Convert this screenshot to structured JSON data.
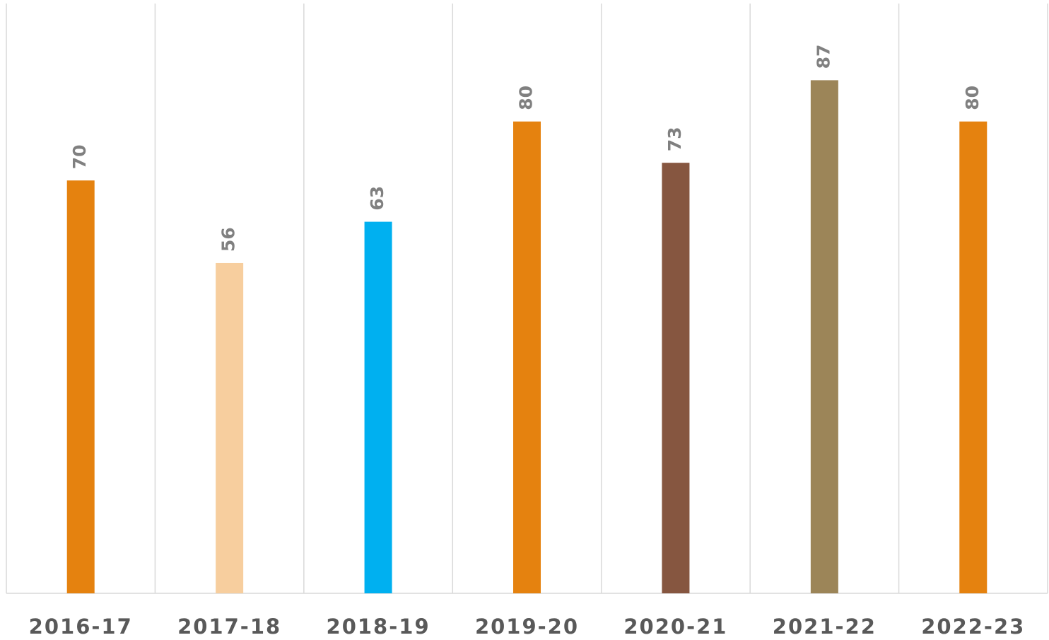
{
  "chart_data": {
    "type": "bar",
    "categories": [
      "2016-17",
      "2017-18",
      "2018-19",
      "2019-20",
      "2020-21",
      "2021-22",
      "2022-23"
    ],
    "values": [
      70,
      56,
      63,
      80,
      73,
      87,
      80
    ],
    "colors": [
      "#e5820f",
      "#f7ce9e",
      "#00b0f0",
      "#e5820f",
      "#865640",
      "#9c8558",
      "#e5820f"
    ],
    "ylim": [
      0,
      100
    ]
  }
}
